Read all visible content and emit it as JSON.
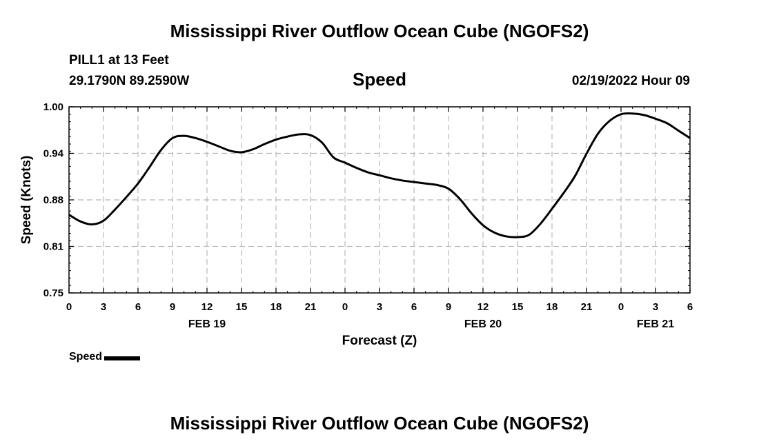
{
  "header": {
    "title": "Mississippi River Outflow Ocean Cube (NGOFS2)",
    "station": "PILL1 at 13 Feet",
    "coords": "29.1790N  89.2590W",
    "variable": "Speed",
    "timestamp": "02/19/2022 Hour 09"
  },
  "footer": {
    "title": "Mississippi River Outflow Ocean Cube (NGOFS2)"
  },
  "legend": {
    "label": "Speed"
  },
  "chart_data": {
    "type": "line",
    "xlabel": "Forecast (Z)",
    "ylabel": "Speed (Knots)",
    "ylim": [
      0.75,
      1.0
    ],
    "y_ticks": [
      "0.75",
      "0.81",
      "0.88",
      "0.94",
      "1.00"
    ],
    "y_tick_values": [
      0.75,
      0.8125,
      0.875,
      0.9375,
      1.0
    ],
    "xlim": [
      0,
      54
    ],
    "x_tick_labels": [
      "0",
      "3",
      "6",
      "9",
      "12",
      "15",
      "18",
      "21",
      "0",
      "3",
      "6",
      "9",
      "12",
      "15",
      "18",
      "21",
      "0",
      "3",
      "6"
    ],
    "date_labels": [
      {
        "label": "FEB 19",
        "hour": 12
      },
      {
        "label": "FEB 20",
        "hour": 36
      },
      {
        "label": "FEB 21",
        "hour": 51
      }
    ],
    "grid": true,
    "series": [
      {
        "name": "Speed",
        "color": "#000000",
        "x": [
          0,
          1,
          2,
          3,
          4,
          5,
          6,
          7,
          8,
          9,
          10,
          11,
          12,
          13,
          14,
          15,
          16,
          17,
          18,
          19,
          20,
          21,
          22,
          23,
          24,
          25,
          26,
          27,
          28,
          29,
          30,
          31,
          32,
          33,
          34,
          35,
          36,
          37,
          38,
          39,
          40,
          41,
          42,
          43,
          44,
          45,
          46,
          47,
          48,
          49,
          50,
          51,
          52,
          53,
          54
        ],
        "values": [
          0.855,
          0.846,
          0.842,
          0.847,
          0.862,
          0.879,
          0.897,
          0.919,
          0.942,
          0.958,
          0.961,
          0.958,
          0.953,
          0.947,
          0.941,
          0.939,
          0.943,
          0.95,
          0.956,
          0.96,
          0.963,
          0.962,
          0.952,
          0.932,
          0.925,
          0.918,
          0.912,
          0.908,
          0.904,
          0.901,
          0.899,
          0.897,
          0.895,
          0.89,
          0.876,
          0.857,
          0.841,
          0.831,
          0.826,
          0.825,
          0.828,
          0.843,
          0.863,
          0.884,
          0.907,
          0.937,
          0.964,
          0.981,
          0.99,
          0.991,
          0.989,
          0.984,
          0.978,
          0.968,
          0.958
        ]
      }
    ]
  }
}
